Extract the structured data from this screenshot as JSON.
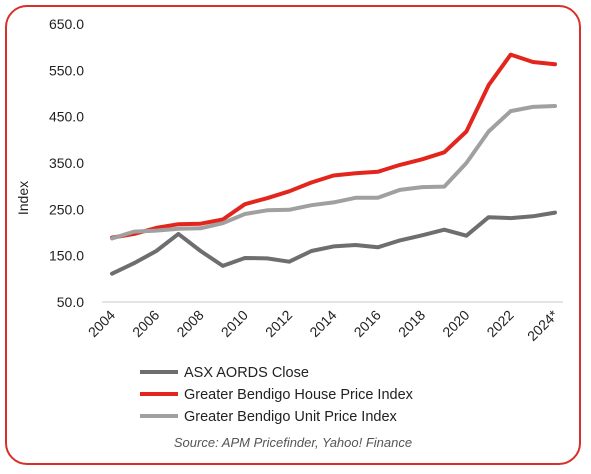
{
  "chart_data": {
    "type": "line",
    "x": [
      "2004",
      "2005",
      "2006",
      "2007",
      "2008",
      "2009",
      "2010",
      "2011",
      "2012",
      "2013",
      "2014",
      "2015",
      "2016",
      "2017",
      "2018",
      "2019",
      "2020",
      "2021",
      "2022",
      "2023",
      "2024*"
    ],
    "x_tick_labels": [
      "2004",
      "2006",
      "2008",
      "2010",
      "2012",
      "2014",
      "2016",
      "2018",
      "2020",
      "2022",
      "2024*"
    ],
    "ylabel": "Index",
    "ylim": [
      50,
      650
    ],
    "y_tick_labels": [
      "50.0",
      "150.0",
      "250.0",
      "350.0",
      "450.0",
      "550.0",
      "650.0"
    ],
    "legend_position": "bottom",
    "grid": false,
    "series": [
      {
        "name": "ASX AORDS Close",
        "color": "#6e6e6e",
        "values": [
          111,
          134,
          160,
          197,
          160,
          128,
          145,
          144,
          137,
          160,
          170,
          173,
          168,
          183,
          194,
          206,
          193,
          233,
          231,
          235,
          243
        ]
      },
      {
        "name": "Greater Bendigo House Price Index",
        "color": "#e3261d",
        "values": [
          189,
          197,
          210,
          218,
          219,
          228,
          261,
          274,
          289,
          308,
          323,
          328,
          331,
          346,
          358,
          373,
          418,
          518,
          584,
          568,
          563
        ]
      },
      {
        "name": "Greater Bendigo Unit Price Index",
        "color": "#a0a0a0",
        "values": [
          187,
          202,
          204,
          208,
          209,
          220,
          240,
          248,
          249,
          259,
          265,
          275,
          275,
          292,
          298,
          299,
          350,
          418,
          462,
          471,
          473
        ]
      }
    ],
    "source": "Source: APM Pricefinder, Yahoo! Finance"
  }
}
